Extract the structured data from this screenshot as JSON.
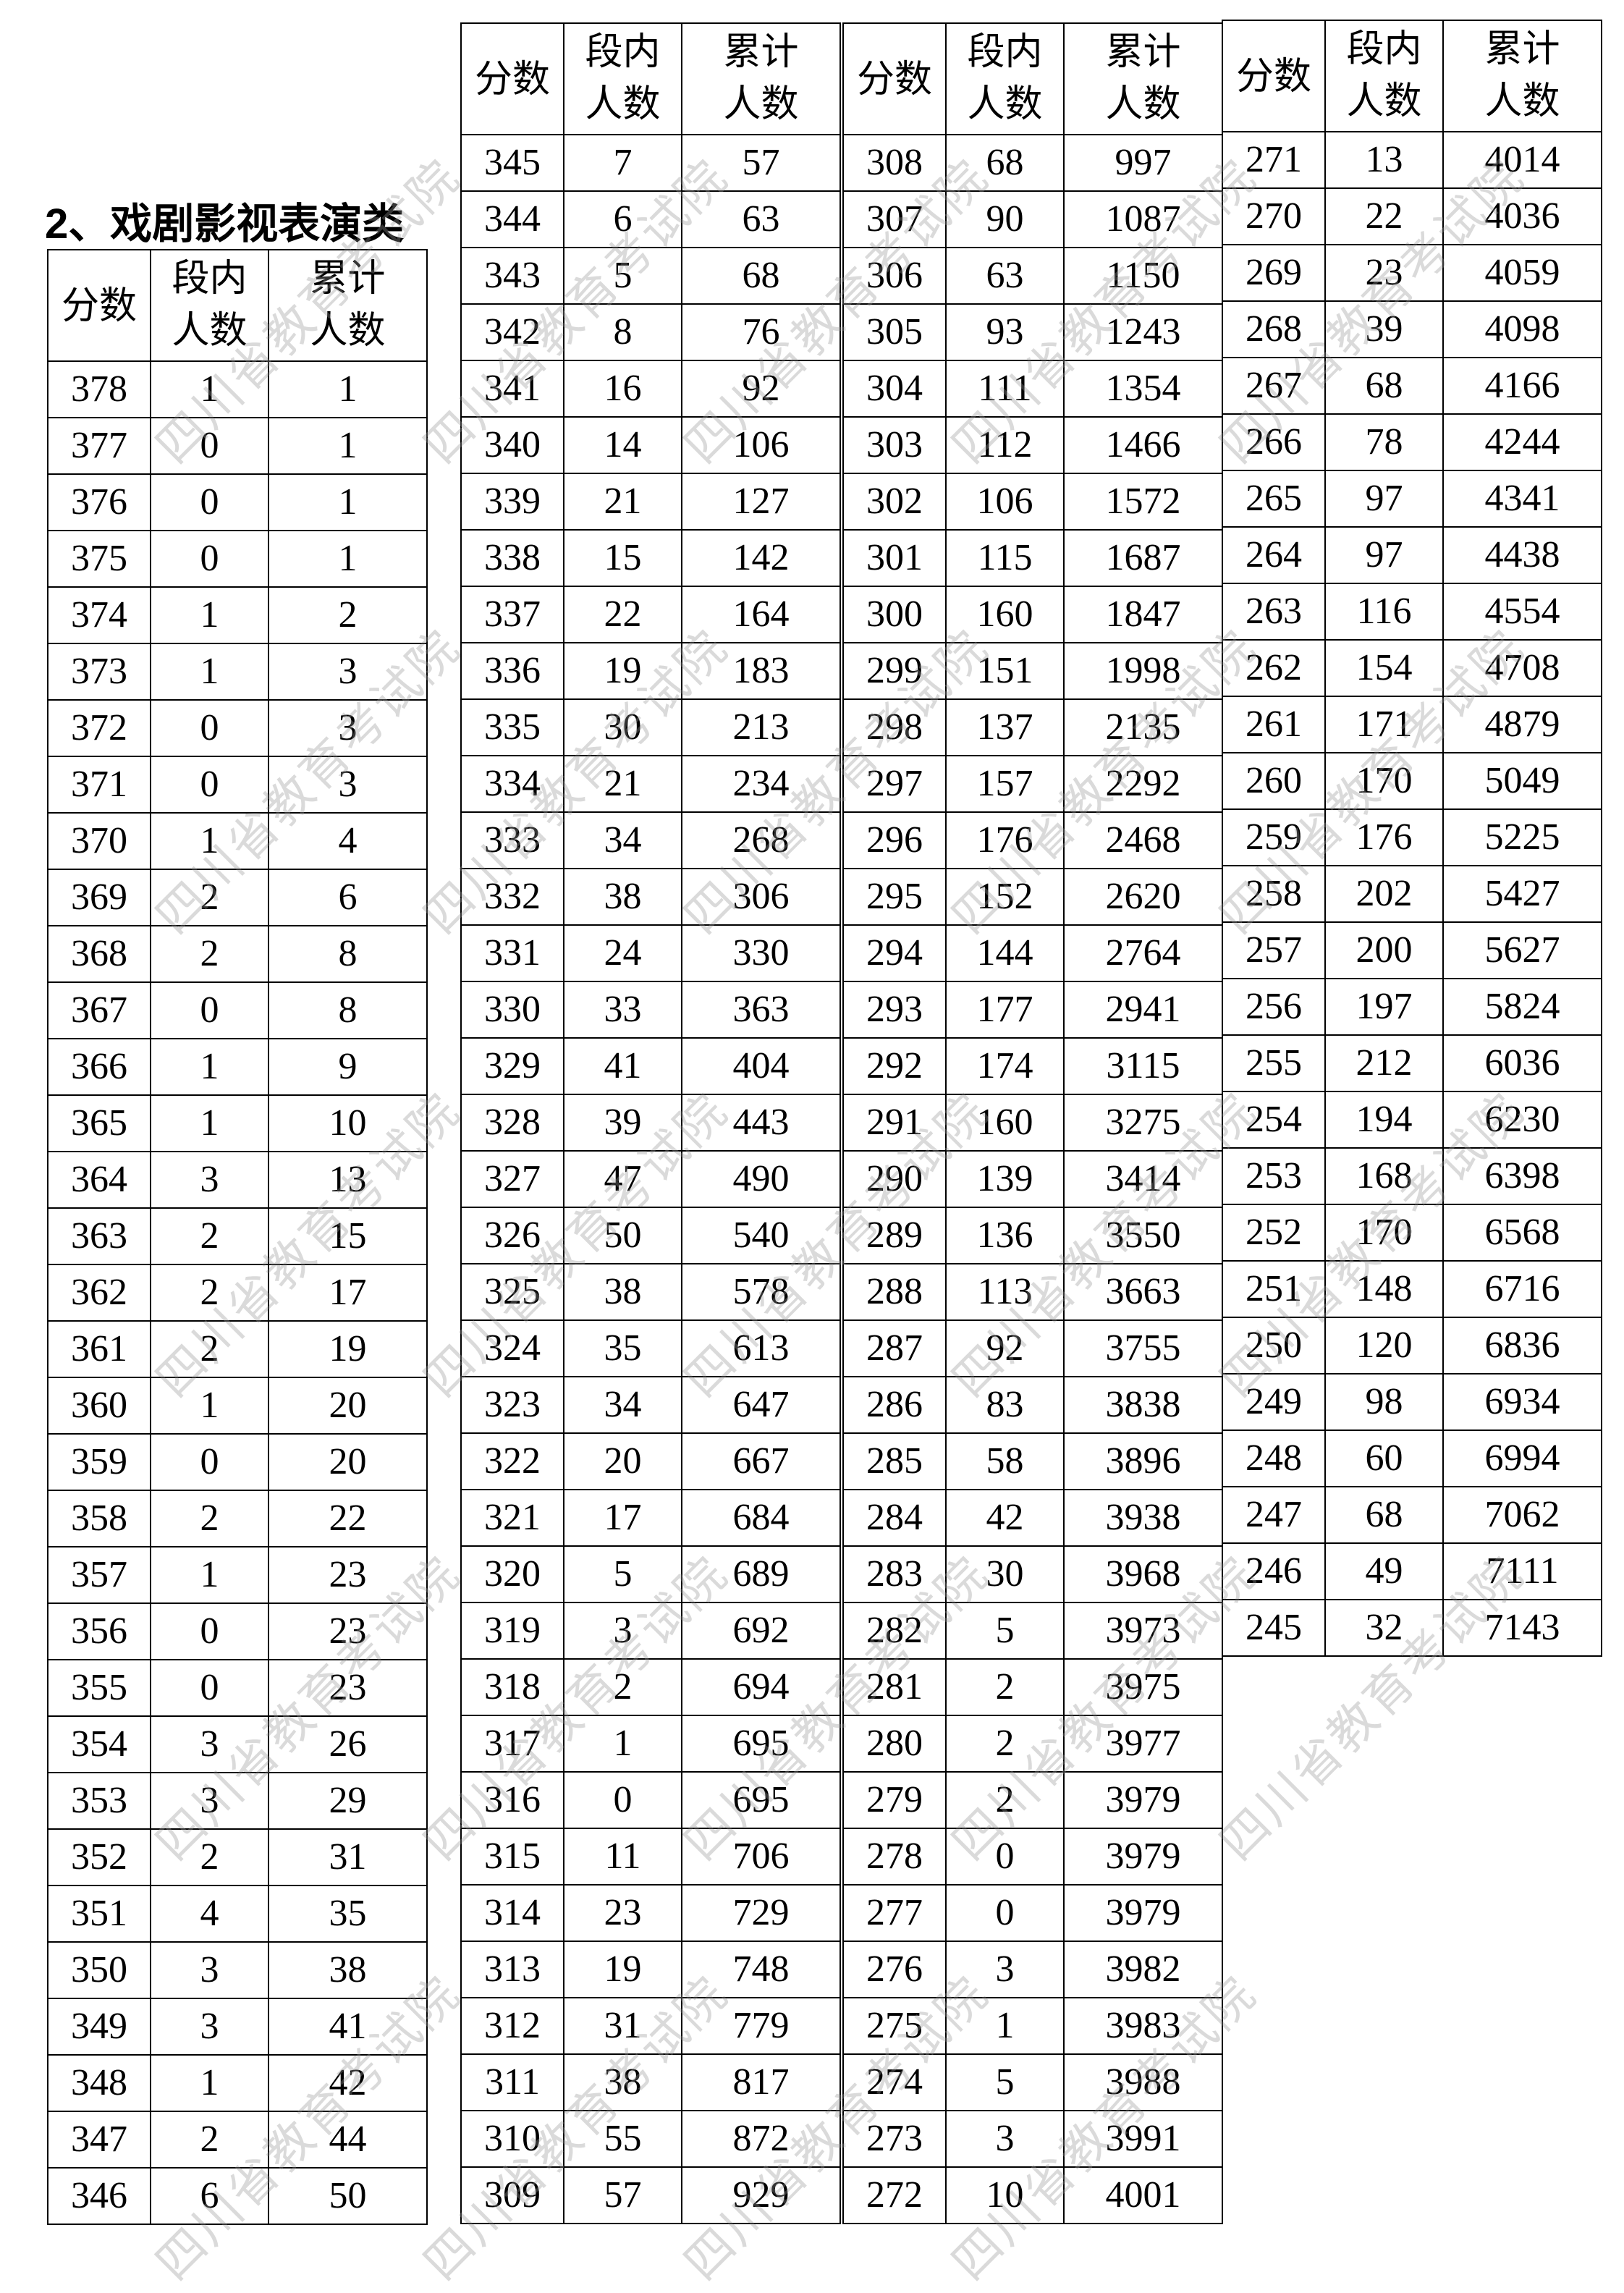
{
  "heading": "2、戏剧影视表演类",
  "watermark": "四川省教育考试院",
  "headers": {
    "score": "分数",
    "segment": "段内人数",
    "cumulative": "累计人数"
  },
  "tables": [
    {
      "rows": [
        [
          "378",
          "1",
          "1"
        ],
        [
          "377",
          "0",
          "1"
        ],
        [
          "376",
          "0",
          "1"
        ],
        [
          "375",
          "0",
          "1"
        ],
        [
          "374",
          "1",
          "2"
        ],
        [
          "373",
          "1",
          "3"
        ],
        [
          "372",
          "0",
          "3"
        ],
        [
          "371",
          "0",
          "3"
        ],
        [
          "370",
          "1",
          "4"
        ],
        [
          "369",
          "2",
          "6"
        ],
        [
          "368",
          "2",
          "8"
        ],
        [
          "367",
          "0",
          "8"
        ],
        [
          "366",
          "1",
          "9"
        ],
        [
          "365",
          "1",
          "10"
        ],
        [
          "364",
          "3",
          "13"
        ],
        [
          "363",
          "2",
          "15"
        ],
        [
          "362",
          "2",
          "17"
        ],
        [
          "361",
          "2",
          "19"
        ],
        [
          "360",
          "1",
          "20"
        ],
        [
          "359",
          "0",
          "20"
        ],
        [
          "358",
          "2",
          "22"
        ],
        [
          "357",
          "1",
          "23"
        ],
        [
          "356",
          "0",
          "23"
        ],
        [
          "355",
          "0",
          "23"
        ],
        [
          "354",
          "3",
          "26"
        ],
        [
          "353",
          "3",
          "29"
        ],
        [
          "352",
          "2",
          "31"
        ],
        [
          "351",
          "4",
          "35"
        ],
        [
          "350",
          "3",
          "38"
        ],
        [
          "349",
          "3",
          "41"
        ],
        [
          "348",
          "1",
          "42"
        ],
        [
          "347",
          "2",
          "44"
        ],
        [
          "346",
          "6",
          "50"
        ]
      ]
    },
    {
      "rows": [
        [
          "345",
          "7",
          "57"
        ],
        [
          "344",
          "6",
          "63"
        ],
        [
          "343",
          "5",
          "68"
        ],
        [
          "342",
          "8",
          "76"
        ],
        [
          "341",
          "16",
          "92"
        ],
        [
          "340",
          "14",
          "106"
        ],
        [
          "339",
          "21",
          "127"
        ],
        [
          "338",
          "15",
          "142"
        ],
        [
          "337",
          "22",
          "164"
        ],
        [
          "336",
          "19",
          "183"
        ],
        [
          "335",
          "30",
          "213"
        ],
        [
          "334",
          "21",
          "234"
        ],
        [
          "333",
          "34",
          "268"
        ],
        [
          "332",
          "38",
          "306"
        ],
        [
          "331",
          "24",
          "330"
        ],
        [
          "330",
          "33",
          "363"
        ],
        [
          "329",
          "41",
          "404"
        ],
        [
          "328",
          "39",
          "443"
        ],
        [
          "327",
          "47",
          "490"
        ],
        [
          "326",
          "50",
          "540"
        ],
        [
          "325",
          "38",
          "578"
        ],
        [
          "324",
          "35",
          "613"
        ],
        [
          "323",
          "34",
          "647"
        ],
        [
          "322",
          "20",
          "667"
        ],
        [
          "321",
          "17",
          "684"
        ],
        [
          "320",
          "5",
          "689"
        ],
        [
          "319",
          "3",
          "692"
        ],
        [
          "318",
          "2",
          "694"
        ],
        [
          "317",
          "1",
          "695"
        ],
        [
          "316",
          "0",
          "695"
        ],
        [
          "315",
          "11",
          "706"
        ],
        [
          "314",
          "23",
          "729"
        ],
        [
          "313",
          "19",
          "748"
        ],
        [
          "312",
          "31",
          "779"
        ],
        [
          "311",
          "38",
          "817"
        ],
        [
          "310",
          "55",
          "872"
        ],
        [
          "309",
          "57",
          "929"
        ]
      ]
    },
    {
      "rows": [
        [
          "308",
          "68",
          "997"
        ],
        [
          "307",
          "90",
          "1087"
        ],
        [
          "306",
          "63",
          "1150"
        ],
        [
          "305",
          "93",
          "1243"
        ],
        [
          "304",
          "111",
          "1354"
        ],
        [
          "303",
          "112",
          "1466"
        ],
        [
          "302",
          "106",
          "1572"
        ],
        [
          "301",
          "115",
          "1687"
        ],
        [
          "300",
          "160",
          "1847"
        ],
        [
          "299",
          "151",
          "1998"
        ],
        [
          "298",
          "137",
          "2135"
        ],
        [
          "297",
          "157",
          "2292"
        ],
        [
          "296",
          "176",
          "2468"
        ],
        [
          "295",
          "152",
          "2620"
        ],
        [
          "294",
          "144",
          "2764"
        ],
        [
          "293",
          "177",
          "2941"
        ],
        [
          "292",
          "174",
          "3115"
        ],
        [
          "291",
          "160",
          "3275"
        ],
        [
          "290",
          "139",
          "3414"
        ],
        [
          "289",
          "136",
          "3550"
        ],
        [
          "288",
          "113",
          "3663"
        ],
        [
          "287",
          "92",
          "3755"
        ],
        [
          "286",
          "83",
          "3838"
        ],
        [
          "285",
          "58",
          "3896"
        ],
        [
          "284",
          "42",
          "3938"
        ],
        [
          "283",
          "30",
          "3968"
        ],
        [
          "282",
          "5",
          "3973"
        ],
        [
          "281",
          "2",
          "3975"
        ],
        [
          "280",
          "2",
          "3977"
        ],
        [
          "279",
          "2",
          "3979"
        ],
        [
          "278",
          "0",
          "3979"
        ],
        [
          "277",
          "0",
          "3979"
        ],
        [
          "276",
          "3",
          "3982"
        ],
        [
          "275",
          "1",
          "3983"
        ],
        [
          "274",
          "5",
          "3988"
        ],
        [
          "273",
          "3",
          "3991"
        ],
        [
          "272",
          "10",
          "4001"
        ]
      ]
    },
    {
      "rows": [
        [
          "271",
          "13",
          "4014"
        ],
        [
          "270",
          "22",
          "4036"
        ],
        [
          "269",
          "23",
          "4059"
        ],
        [
          "268",
          "39",
          "4098"
        ],
        [
          "267",
          "68",
          "4166"
        ],
        [
          "266",
          "78",
          "4244"
        ],
        [
          "265",
          "97",
          "4341"
        ],
        [
          "264",
          "97",
          "4438"
        ],
        [
          "263",
          "116",
          "4554"
        ],
        [
          "262",
          "154",
          "4708"
        ],
        [
          "261",
          "171",
          "4879"
        ],
        [
          "260",
          "170",
          "5049"
        ],
        [
          "259",
          "176",
          "5225"
        ],
        [
          "258",
          "202",
          "5427"
        ],
        [
          "257",
          "200",
          "5627"
        ],
        [
          "256",
          "197",
          "5824"
        ],
        [
          "255",
          "212",
          "6036"
        ],
        [
          "254",
          "194",
          "6230"
        ],
        [
          "253",
          "168",
          "6398"
        ],
        [
          "252",
          "170",
          "6568"
        ],
        [
          "251",
          "148",
          "6716"
        ],
        [
          "250",
          "120",
          "6836"
        ],
        [
          "249",
          "98",
          "6934"
        ],
        [
          "248",
          "60",
          "6994"
        ],
        [
          "247",
          "68",
          "7062"
        ],
        [
          "246",
          "49",
          "7111"
        ],
        [
          "245",
          "32",
          "7143"
        ]
      ]
    }
  ]
}
